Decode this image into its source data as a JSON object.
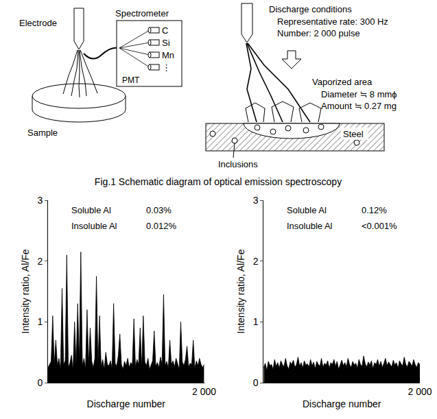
{
  "diagram": {
    "left": {
      "electrode": "Electrode",
      "spectrometer": "Spectrometer",
      "elements": [
        "C",
        "Si",
        "Mn",
        "⋮"
      ],
      "detector": "PMT",
      "sample": "Sample"
    },
    "right": {
      "conditions_title": "Discharge conditions",
      "conditions": [
        "Representative rate: 300 Hz",
        "Number: 2 000 pulse"
      ],
      "vaporized_title": "Vaporized area",
      "vaporized": [
        "Diameter ≒ 8 mmϕ",
        "Amount ≒ 0.27 mg"
      ],
      "steel": "Steel",
      "inclusions": "Inclusions"
    },
    "caption": "Fig.1  Schematic diagram of optical emission spectroscopy"
  },
  "chart_data": [
    {
      "type": "area",
      "x_label": "Discharge number",
      "y_label": "Intensity ratio, Al/Fe",
      "color": "#000000",
      "xlim": [
        0,
        2000
      ],
      "xticks": [
        {
          "value": 2000,
          "label": "2 000"
        }
      ],
      "ylim": [
        0,
        3
      ],
      "yticks": [
        0,
        1,
        2,
        3
      ],
      "annotations": [
        {
          "label": "Soluble Al",
          "value": "0.03%"
        },
        {
          "label": "Insoluble Al",
          "value": "0.012%"
        }
      ],
      "x": [
        0,
        20,
        40,
        60,
        80,
        100,
        120,
        140,
        160,
        180,
        200,
        220,
        240,
        260,
        280,
        300,
        320,
        340,
        360,
        380,
        400,
        420,
        440,
        460,
        480,
        500,
        520,
        540,
        560,
        580,
        600,
        620,
        640,
        660,
        680,
        700,
        720,
        740,
        760,
        780,
        800,
        820,
        840,
        860,
        880,
        900,
        920,
        940,
        960,
        980,
        1000,
        1020,
        1040,
        1060,
        1080,
        1100,
        1120,
        1140,
        1160,
        1180,
        1200,
        1220,
        1240,
        1260,
        1280,
        1300,
        1320,
        1340,
        1360,
        1380,
        1400,
        1420,
        1440,
        1460,
        1480,
        1500,
        1520,
        1540,
        1560,
        1580,
        1600,
        1620,
        1640,
        1660,
        1680,
        1700,
        1720,
        1740,
        1760,
        1780,
        1800,
        1820,
        1840,
        1860,
        1880,
        1900,
        1920,
        1940,
        1960,
        1980,
        2000
      ],
      "values": [
        0.25,
        0.3,
        0.35,
        1.1,
        0.3,
        0.7,
        0.28,
        0.4,
        0.22,
        1.55,
        0.3,
        0.36,
        2.1,
        0.25,
        0.32,
        0.45,
        0.2,
        1.0,
        0.3,
        1.3,
        0.35,
        2.15,
        0.28,
        0.4,
        0.22,
        1.2,
        0.3,
        0.9,
        0.35,
        0.25,
        0.4,
        1.75,
        0.3,
        1.1,
        0.26,
        0.38,
        0.22,
        0.5,
        0.3,
        0.28,
        0.36,
        0.24,
        1.3,
        0.32,
        0.27,
        0.45,
        0.8,
        0.3,
        0.22,
        0.35,
        0.28,
        0.4,
        0.25,
        0.33,
        0.3,
        1.05,
        0.26,
        0.38,
        0.3,
        0.9,
        0.24,
        1.1,
        0.34,
        0.28,
        0.4,
        0.22,
        0.3,
        0.36,
        0.85,
        0.27,
        0.33,
        0.25,
        0.42,
        0.3,
        1.45,
        0.28,
        0.35,
        0.24,
        0.7,
        0.3,
        0.36,
        0.26,
        0.4,
        0.3,
        0.22,
        1.0,
        0.34,
        0.28,
        0.38,
        0.6,
        0.26,
        0.32,
        0.3,
        0.7,
        0.24,
        0.36,
        0.28,
        0.4,
        0.3,
        0.25,
        0.3
      ]
    },
    {
      "type": "area",
      "x_label": "Discharge number",
      "y_label": "Intensity ratio, Al/Fe",
      "color": "#000000",
      "xlim": [
        0,
        2000
      ],
      "xticks": [
        {
          "value": 2000,
          "label": "2 000"
        }
      ],
      "ylim": [
        0,
        3
      ],
      "yticks": [
        0,
        1,
        2,
        3
      ],
      "annotations": [
        {
          "label": "Soluble Al",
          "value": "0.12%"
        },
        {
          "label": "Insoluble Al",
          "value": "<0.001%"
        }
      ],
      "x": [
        0,
        20,
        40,
        60,
        80,
        100,
        120,
        140,
        160,
        180,
        200,
        220,
        240,
        260,
        280,
        300,
        320,
        340,
        360,
        380,
        400,
        420,
        440,
        460,
        480,
        500,
        520,
        540,
        560,
        580,
        600,
        620,
        640,
        660,
        680,
        700,
        720,
        740,
        760,
        780,
        800,
        820,
        840,
        860,
        880,
        900,
        920,
        940,
        960,
        980,
        1000,
        1020,
        1040,
        1060,
        1080,
        1100,
        1120,
        1140,
        1160,
        1180,
        1200,
        1220,
        1240,
        1260,
        1280,
        1300,
        1320,
        1340,
        1360,
        1380,
        1400,
        1420,
        1440,
        1460,
        1480,
        1500,
        1520,
        1540,
        1560,
        1580,
        1600,
        1620,
        1640,
        1660,
        1680,
        1700,
        1720,
        1740,
        1760,
        1780,
        1800,
        1820,
        1840,
        1860,
        1880,
        1900,
        1920,
        1940,
        1960,
        1980,
        2000
      ],
      "values": [
        0.25,
        0.32,
        0.2,
        0.35,
        0.28,
        0.3,
        0.22,
        0.38,
        0.27,
        0.33,
        0.24,
        0.36,
        0.3,
        0.26,
        0.4,
        0.28,
        0.22,
        0.34,
        0.3,
        0.37,
        0.25,
        0.3,
        0.42,
        0.27,
        0.33,
        0.24,
        0.36,
        0.29,
        0.31,
        0.26,
        0.38,
        0.28,
        0.34,
        0.23,
        0.35,
        0.3,
        0.27,
        0.4,
        0.25,
        0.32,
        0.29,
        0.36,
        0.24,
        0.33,
        0.3,
        0.38,
        0.27,
        0.35,
        0.22,
        0.31,
        0.37,
        0.28,
        0.33,
        0.26,
        0.4,
        0.3,
        0.25,
        0.35,
        0.29,
        0.32,
        0.24,
        0.38,
        0.3,
        0.27,
        0.44,
        0.31,
        0.26,
        0.34,
        0.29,
        0.36,
        0.23,
        0.33,
        0.3,
        0.38,
        0.27,
        0.35,
        0.25,
        0.32,
        0.4,
        0.28,
        0.34,
        0.3,
        0.26,
        0.37,
        0.29,
        0.33,
        0.24,
        0.36,
        0.31,
        0.28,
        0.42,
        0.3,
        0.26,
        0.35,
        0.32,
        0.27,
        0.38,
        0.3,
        0.25,
        0.33,
        0.3
      ]
    }
  ]
}
